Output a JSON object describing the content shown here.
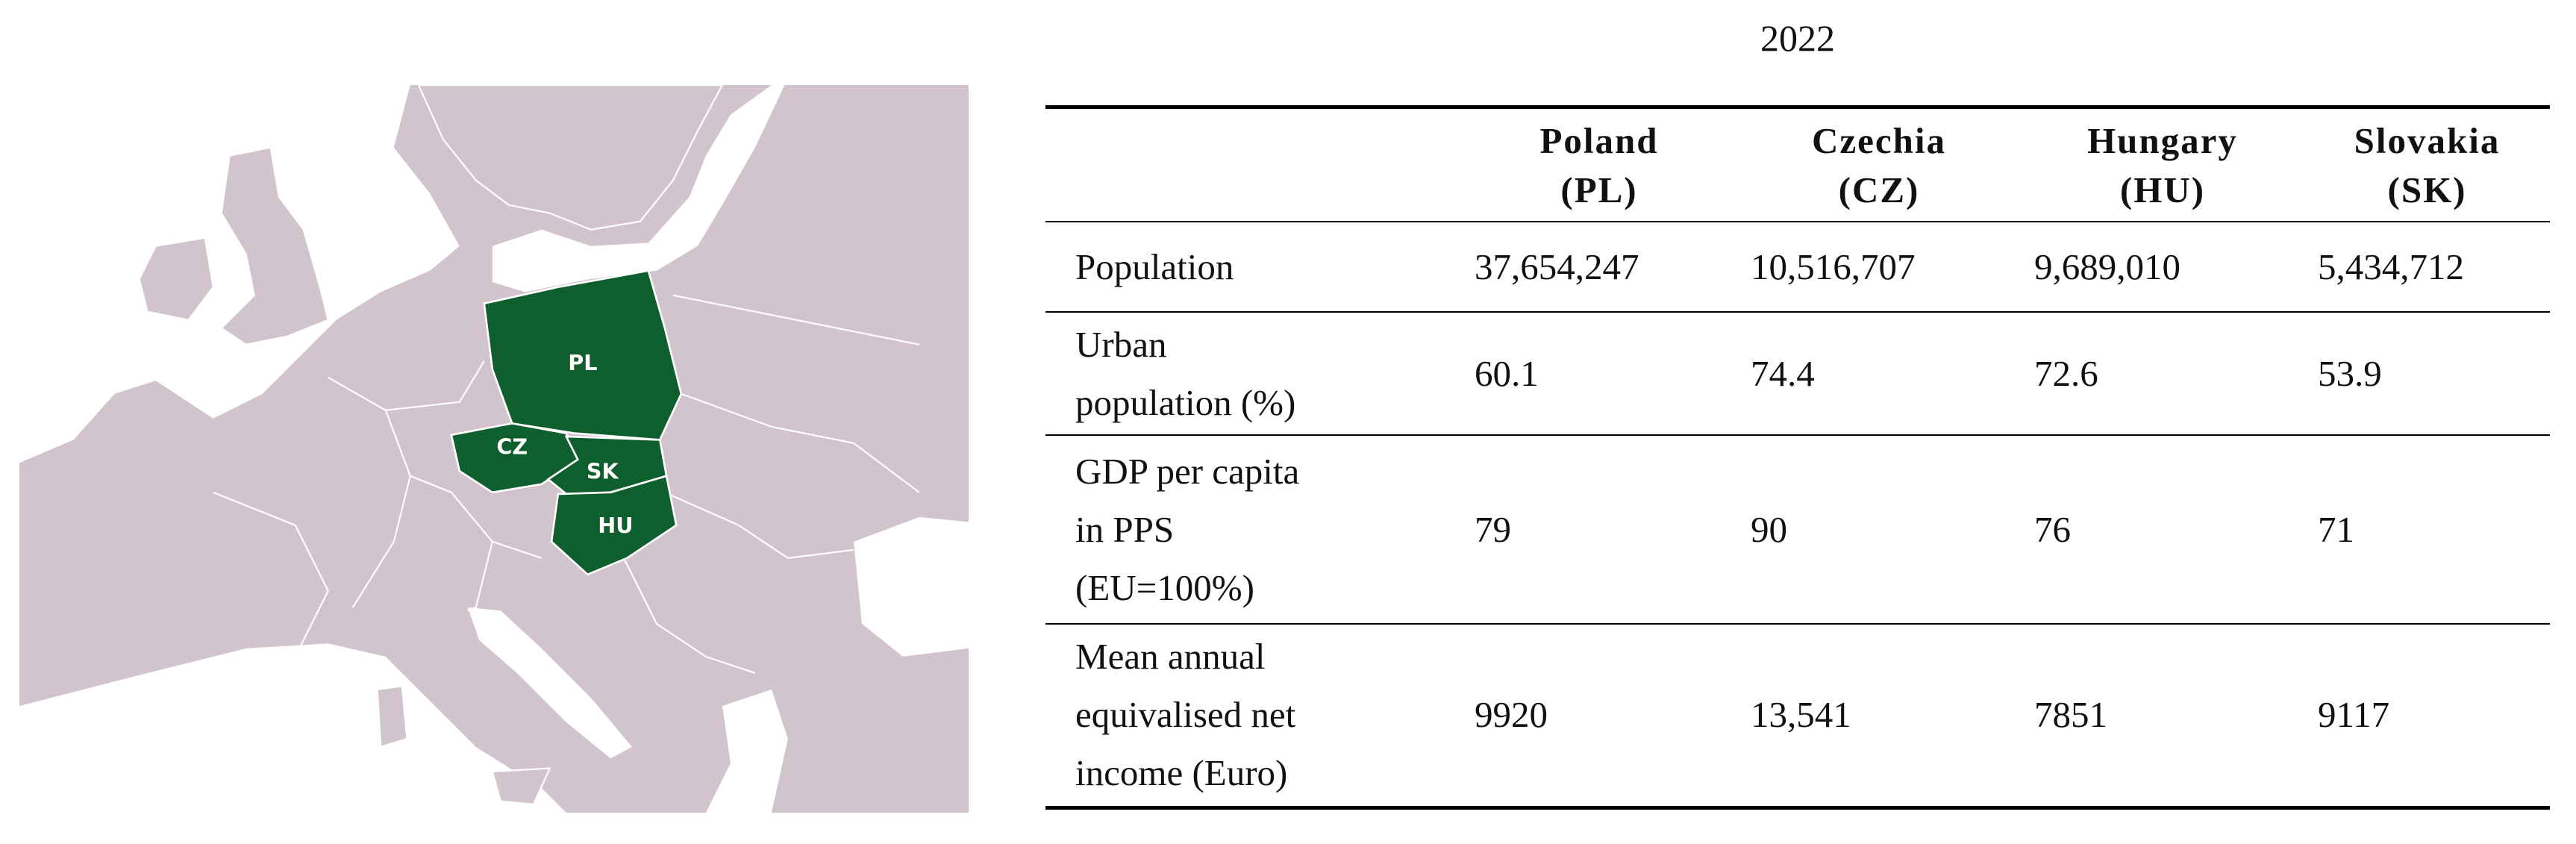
{
  "map": {
    "labels": [
      "PL",
      "CZ",
      "SK",
      "HU"
    ]
  },
  "table": {
    "title": "2022",
    "columns": [
      {
        "name": "Poland",
        "code": "(PL)"
      },
      {
        "name": "Czechia",
        "code": "(CZ)"
      },
      {
        "name": "Hungary",
        "code": "(HU)"
      },
      {
        "name": "Slovakia",
        "code": "(SK)"
      }
    ],
    "rows": [
      {
        "label": [
          "Population"
        ],
        "values": [
          "37,654,247",
          "10,516,707",
          "9,689,010",
          "5,434,712"
        ]
      },
      {
        "label": [
          "Urban",
          "population (%)"
        ],
        "values": [
          "60.1",
          "74.4",
          "72.6",
          "53.9"
        ]
      },
      {
        "label": [
          "GDP per capita",
          "in PPS",
          "(EU=100%)"
        ],
        "values": [
          "79",
          "90",
          "76",
          "71"
        ]
      },
      {
        "label": [
          "Mean annual",
          "equivalised net",
          "income (Euro)"
        ],
        "values": [
          "9920",
          "13,541",
          "7851",
          "9117"
        ]
      }
    ]
  }
}
